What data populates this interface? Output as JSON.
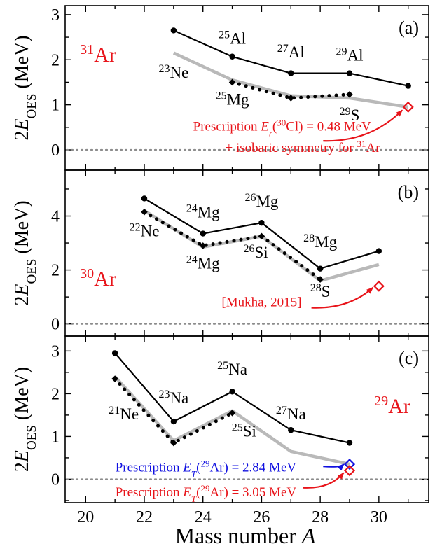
{
  "chart_data": {
    "xlabel_text": "Mass number ",
    "xlabel_var": "A",
    "x_ticks": [
      "20",
      "22",
      "24",
      "26",
      "28",
      "30"
    ],
    "xlim": [
      19.3,
      31.7
    ],
    "colors": {
      "black": "#000000",
      "gray": "#b9b9b9",
      "red": "#e8141a",
      "blue": "#1010e0",
      "dotted_axis": "#8c8c8c"
    },
    "panels": [
      {
        "type": "line",
        "panel_label": "(a)",
        "nucleus_mass": "31",
        "nucleus_symbol": "Ar",
        "ylim": [
          -0.45,
          3.2
        ],
        "y_ticks": [
          "0",
          "1",
          "2",
          "3"
        ],
        "series": [
          {
            "style": "black-solid",
            "x": [
              23,
              25,
              27,
              29,
              31
            ],
            "y": [
              2.65,
              2.07,
              1.7,
              1.7,
              1.42
            ]
          },
          {
            "style": "gray",
            "x": [
              23,
              25,
              27,
              29,
              31
            ],
            "y": [
              2.15,
              1.55,
              1.2,
              1.15,
              0.95
            ]
          },
          {
            "style": "black-dotted",
            "x": [
              25,
              27,
              29
            ],
            "y": [
              1.5,
              1.15,
              1.23
            ]
          },
          {
            "style": "red-diamond",
            "x": [
              31
            ],
            "y": [
              0.95
            ]
          }
        ],
        "labels": [
          {
            "mass": "23",
            "sym": "Ne",
            "x": 23.0,
            "y": 1.6
          },
          {
            "mass": "25",
            "sym": "Al",
            "x": 25.0,
            "y": 2.35
          },
          {
            "mass": "27",
            "sym": "Al",
            "x": 27.0,
            "y": 2.05
          },
          {
            "mass": "29",
            "sym": "Al",
            "x": 29.0,
            "y": 1.98
          },
          {
            "mass": "25",
            "sym": "Mg",
            "x": 25.0,
            "y": 1.0
          },
          {
            "mass": "29",
            "sym": "S",
            "x": 29.0,
            "y": 0.65
          }
        ],
        "annotations": [
          {
            "color": "red",
            "x": 26.7,
            "y": 0.43,
            "parts": [
              [
                "",
                "Prescription "
              ],
              [
                "i",
                "E"
              ],
              [
                "sub",
                "r"
              ],
              [
                "",
                "("
              ],
              [
                "sup",
                "30"
              ],
              [
                "",
                "Cl) = 0.48 MeV"
              ]
            ]
          },
          {
            "color": "red",
            "x": 27.4,
            "y": -0.05,
            "parts": [
              [
                "",
                "+ isobaric symmetry for "
              ],
              [
                "sup",
                "31"
              ],
              [
                "",
                "Ar"
              ]
            ]
          }
        ],
        "arrows": [
          {
            "color": "red",
            "from": [
              28.1,
              0.2
            ],
            "to": [
              30.8,
              0.88
            ]
          }
        ]
      },
      {
        "type": "line",
        "panel_label": "(b)",
        "nucleus_mass": "30",
        "nucleus_symbol": "Ar",
        "ylim": [
          -0.45,
          5.7
        ],
        "y_ticks": [
          "0",
          "2",
          "4"
        ],
        "series": [
          {
            "style": "black-solid",
            "x": [
              22,
              24,
              26,
              28,
              30
            ],
            "y": [
              4.65,
              3.35,
              3.75,
              2.05,
              2.7
            ]
          },
          {
            "style": "gray",
            "x": [
              22,
              24,
              26,
              28,
              30
            ],
            "y": [
              4.2,
              2.85,
              3.25,
              1.6,
              2.2
            ]
          },
          {
            "style": "black-dotted",
            "x": [
              22,
              24,
              26,
              28
            ],
            "y": [
              4.15,
              2.9,
              3.25,
              1.65
            ]
          },
          {
            "style": "red-diamond",
            "x": [
              30
            ],
            "y": [
              1.4
            ]
          }
        ],
        "labels": [
          {
            "mass": "24",
            "sym": "Mg",
            "x": 24.0,
            "y": 3.95
          },
          {
            "mass": "26",
            "sym": "Mg",
            "x": 26.0,
            "y": 4.35
          },
          {
            "mass": "28",
            "sym": "Mg",
            "x": 28.0,
            "y": 2.85
          },
          {
            "mass": "22",
            "sym": "Ne",
            "x": 22.0,
            "y": 3.25
          },
          {
            "mass": "24",
            "sym": "Mg",
            "x": 24.0,
            "y": 2.05
          },
          {
            "mass": "26",
            "sym": "Si",
            "x": 25.8,
            "y": 2.45
          },
          {
            "mass": "28",
            "sym": "S",
            "x": 28.0,
            "y": 1.0
          }
        ],
        "annotations": [
          {
            "color": "red",
            "x": 26.0,
            "y": 0.65,
            "parts": [
              [
                "",
                "[Mukha, 2015]"
              ]
            ]
          }
        ],
        "arrows": [
          {
            "color": "red",
            "from": [
              27.7,
              0.6
            ],
            "to": [
              29.8,
              1.35
            ]
          }
        ]
      },
      {
        "type": "line",
        "panel_label": "(c)",
        "nucleus_mass": "29",
        "nucleus_symbol": "Ar",
        "ylim": [
          -0.55,
          3.35
        ],
        "y_ticks": [
          "0",
          "1",
          "2",
          "3"
        ],
        "series": [
          {
            "style": "black-solid",
            "x": [
              21,
              23,
              25,
              27,
              29
            ],
            "y": [
              2.95,
              1.35,
              2.05,
              1.15,
              0.85
            ]
          },
          {
            "style": "gray",
            "x": [
              21,
              23,
              25,
              27,
              29
            ],
            "y": [
              2.4,
              0.9,
              1.6,
              0.65,
              0.35
            ]
          },
          {
            "style": "black-dotted",
            "x": [
              21,
              23,
              25
            ],
            "y": [
              2.35,
              0.85,
              1.55
            ]
          },
          {
            "style": "blue-diamond",
            "x": [
              29
            ],
            "y": [
              0.35
            ]
          },
          {
            "style": "red-diamond",
            "x": [
              29
            ],
            "y": [
              0.2
            ]
          }
        ],
        "labels": [
          {
            "mass": "23",
            "sym": "Na",
            "x": 23.0,
            "y": 1.78
          },
          {
            "mass": "25",
            "sym": "Na",
            "x": 25.0,
            "y": 2.45
          },
          {
            "mass": "21",
            "sym": "Ne",
            "x": 21.3,
            "y": 1.4
          },
          {
            "mass": "27",
            "sym": "Na",
            "x": 27.0,
            "y": 1.4
          },
          {
            "mass": "25",
            "sym": "Si",
            "x": 25.4,
            "y": 1.0
          }
        ],
        "annotations": [
          {
            "color": "blue",
            "x": 24.1,
            "y": 0.18,
            "parts": [
              [
                "",
                "Prescription "
              ],
              [
                "i",
                "E"
              ],
              [
                "sub",
                "T"
              ],
              [
                "",
                "("
              ],
              [
                "sup",
                "29"
              ],
              [
                "",
                "Ar) = 2.84 MeV"
              ]
            ]
          },
          {
            "color": "red",
            "x": 24.1,
            "y": -0.4,
            "parts": [
              [
                "",
                "Prescription "
              ],
              [
                "i",
                "E"
              ],
              [
                "sub",
                "T"
              ],
              [
                "",
                "("
              ],
              [
                "sup",
                "29"
              ],
              [
                "",
                "Ar) = 3.05 MeV"
              ]
            ]
          }
        ],
        "arrows": [
          {
            "color": "blue",
            "from": [
              28.1,
              0.3
            ],
            "to": [
              28.8,
              0.35
            ]
          },
          {
            "color": "red",
            "from": [
              27.4,
              -0.2
            ],
            "to": [
              28.8,
              0.15
            ]
          }
        ]
      }
    ],
    "ylabel": {
      "main": "2",
      "var": "E",
      "sub": "OES",
      "unit": " (MeV)"
    }
  }
}
